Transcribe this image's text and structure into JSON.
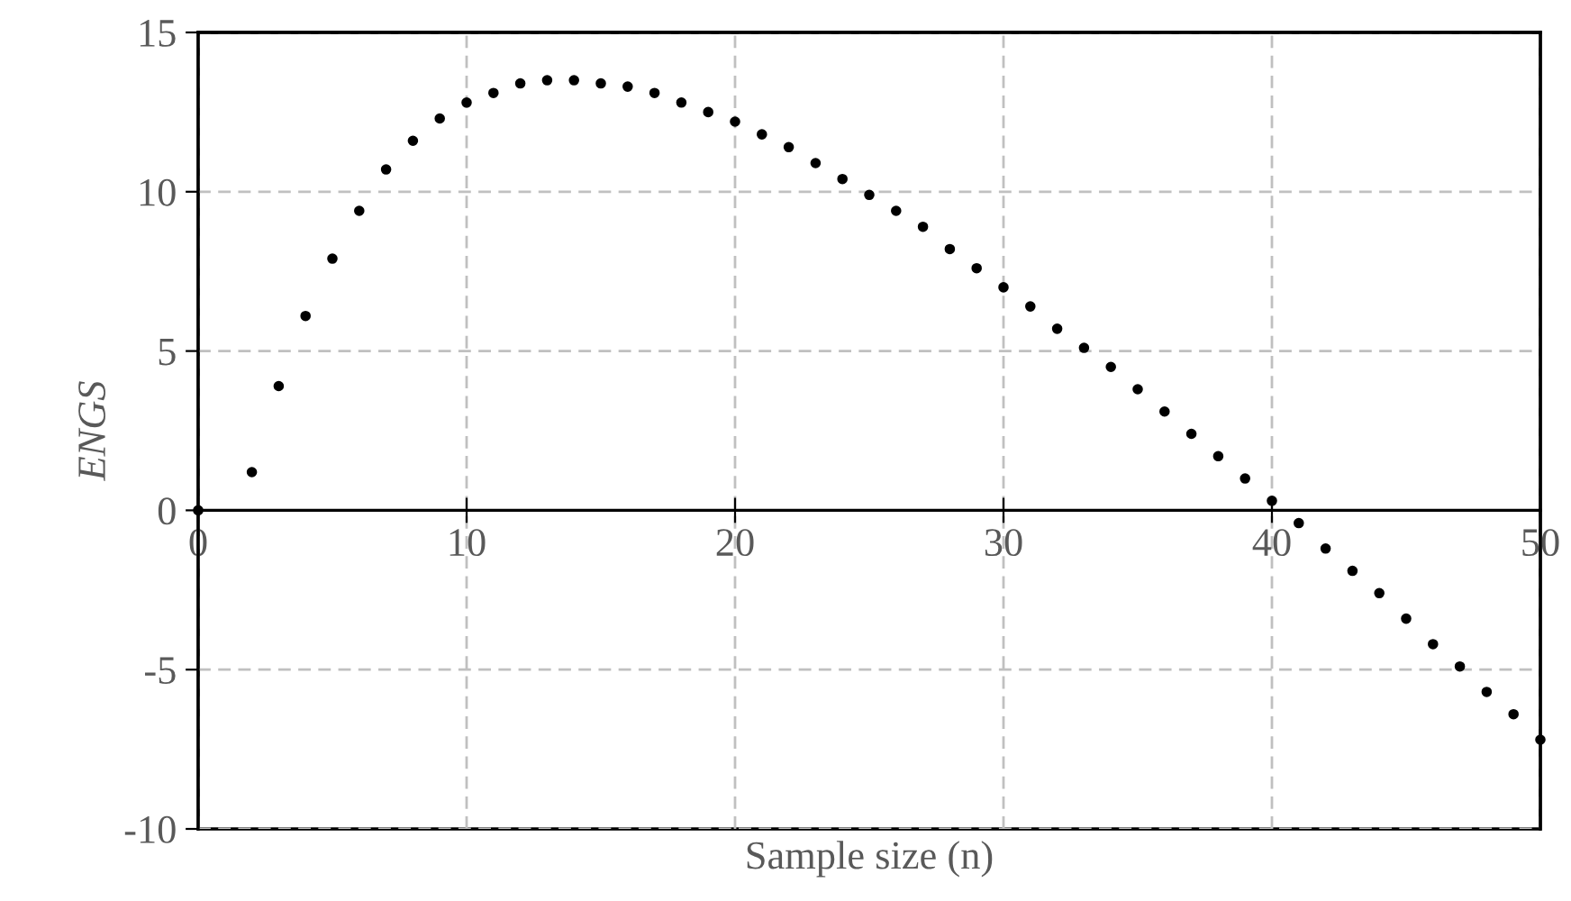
{
  "chart_data": {
    "type": "scatter",
    "xlabel": "Sample size (n)",
    "ylabel": "ENGS",
    "x": [
      0,
      2,
      3,
      4,
      5,
      6,
      7,
      8,
      9,
      10,
      11,
      12,
      13,
      14,
      15,
      16,
      17,
      18,
      19,
      20,
      21,
      22,
      23,
      24,
      25,
      26,
      27,
      28,
      29,
      30,
      31,
      32,
      33,
      34,
      35,
      36,
      37,
      38,
      39,
      40,
      41,
      42,
      43,
      44,
      45,
      46,
      47,
      48,
      49,
      50
    ],
    "series": [
      {
        "color": "#000000",
        "values": [
          0,
          1.2,
          3.9,
          6.1,
          7.9,
          9.4,
          10.7,
          11.6,
          12.3,
          12.8,
          13.1,
          13.4,
          13.5,
          13.5,
          13.4,
          13.3,
          13.1,
          12.8,
          12.5,
          12.2,
          11.8,
          11.4,
          10.9,
          10.4,
          9.9,
          9.4,
          8.9,
          8.2,
          7.6,
          7.0,
          6.4,
          5.7,
          5.1,
          4.5,
          3.8,
          3.1,
          2.4,
          1.7,
          1.0,
          0.3,
          -0.4,
          -1.2,
          -1.9,
          -2.6,
          -3.4,
          -4.2,
          -4.9,
          -5.7,
          -6.4,
          -7.2
        ]
      }
    ],
    "xlim": [
      0,
      50
    ],
    "xticks": [
      0,
      10,
      20,
      30,
      40,
      50
    ],
    "ylim": [
      -10,
      15
    ],
    "yticks": [
      -10,
      -5,
      0,
      5,
      10,
      15
    ],
    "grid": true,
    "marker": "circle"
  }
}
